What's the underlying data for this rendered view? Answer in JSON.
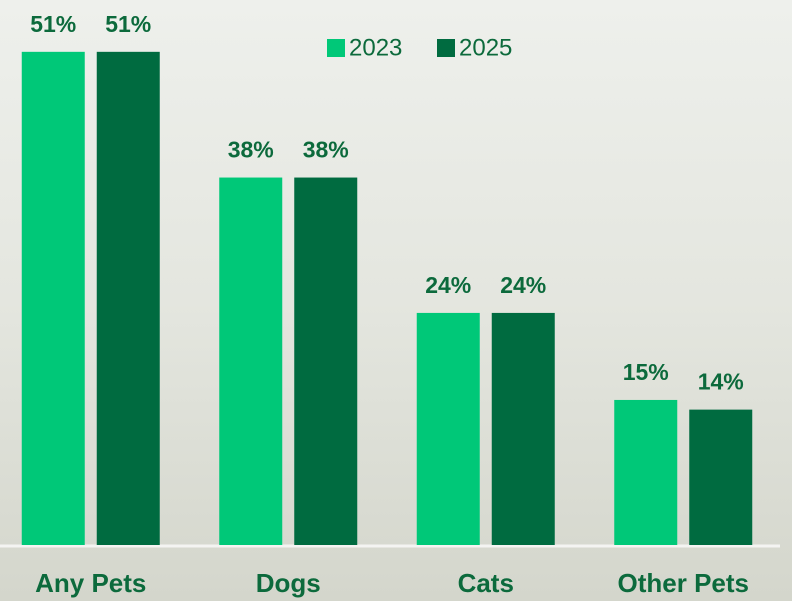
{
  "chart_data": {
    "type": "bar",
    "categories": [
      "Any Pets",
      "Dogs",
      "Cats",
      "Other Pets"
    ],
    "series": [
      {
        "name": "2023",
        "color": "#00c878",
        "values": [
          51,
          38,
          24,
          15
        ],
        "value_labels": [
          "51%",
          "38%",
          "24%",
          "15%"
        ]
      },
      {
        "name": "2025",
        "color": "#006b40",
        "values": [
          51,
          38,
          24,
          14
        ],
        "value_labels": [
          "51%",
          "38%",
          "24%",
          "14%"
        ]
      }
    ]
  }
}
